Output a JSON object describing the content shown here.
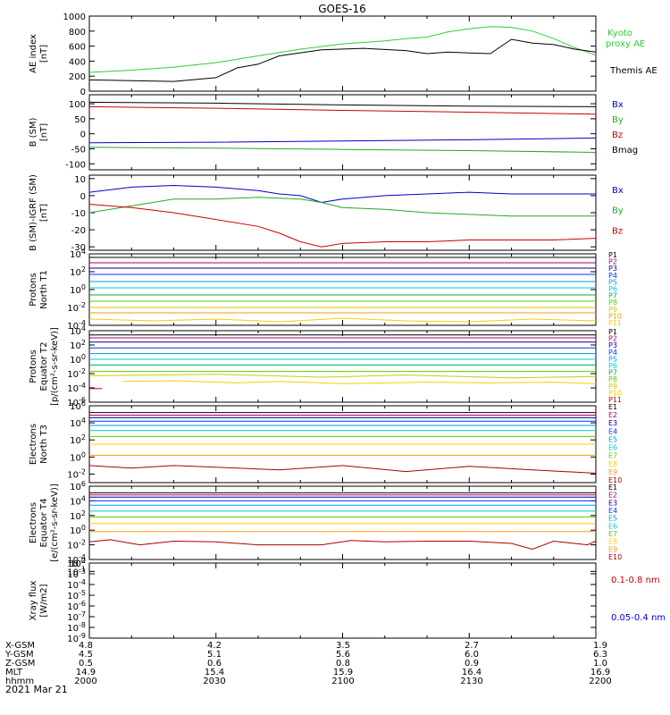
{
  "title": "GOES-16",
  "x_axis": {
    "rows": [
      {
        "label": "X-GSM",
        "values": [
          "4.8",
          "4.2",
          "3.5",
          "2.7",
          "1.9"
        ]
      },
      {
        "label": "Y-GSM",
        "values": [
          "4.5",
          "5.1",
          "5.6",
          "6.0",
          "6.3"
        ]
      },
      {
        "label": "Z-GSM",
        "values": [
          "0.5",
          "0.6",
          "0.8",
          "0.9",
          "1.0"
        ]
      },
      {
        "label": "MLT",
        "values": [
          "14.9",
          "15.4",
          "15.9",
          "16.4",
          "16.9"
        ]
      },
      {
        "label": "hhmm",
        "values": [
          "2000",
          "2030",
          "2100",
          "2130",
          "2200"
        ]
      }
    ],
    "date": "2021 Mar 21",
    "range_minutes": [
      0,
      120
    ]
  },
  "chart_data": [
    {
      "id": "ae",
      "type": "line",
      "ylabel": [
        "AE index",
        "[nT]"
      ],
      "ylim": [
        0,
        1000
      ],
      "yticks": [
        "0",
        "200",
        "400",
        "600",
        "800",
        "1000"
      ],
      "series": [
        {
          "name": "Kyoto proxy AE",
          "color": "#33cc33",
          "x": [
            0,
            10,
            20,
            30,
            40,
            50,
            60,
            70,
            75,
            80,
            85,
            90,
            95,
            100,
            105,
            110,
            115,
            120
          ],
          "y": [
            250,
            280,
            320,
            380,
            470,
            560,
            630,
            670,
            700,
            720,
            790,
            830,
            860,
            850,
            800,
            700,
            580,
            480
          ]
        },
        {
          "name": "Themis AE",
          "color": "#000000",
          "x": [
            0,
            10,
            20,
            30,
            35,
            40,
            45,
            55,
            65,
            75,
            80,
            85,
            90,
            95,
            100,
            105,
            110,
            115,
            120
          ],
          "y": [
            150,
            140,
            130,
            180,
            310,
            360,
            470,
            550,
            570,
            540,
            500,
            520,
            510,
            500,
            690,
            640,
            620,
            560,
            520
          ]
        }
      ]
    },
    {
      "id": "bsm",
      "type": "line",
      "ylabel": [
        "B (SM)",
        "[nT]"
      ],
      "ylim": [
        -120,
        130
      ],
      "yticks": [
        "-100",
        "-50",
        "0",
        "50",
        "100"
      ],
      "series": [
        {
          "name": "Bx",
          "color": "#0000cc",
          "x": [
            0,
            30,
            60,
            90,
            120
          ],
          "y": [
            -30,
            -28,
            -24,
            -20,
            -14
          ]
        },
        {
          "name": "By",
          "color": "#22aa22",
          "x": [
            0,
            30,
            60,
            90,
            120
          ],
          "y": [
            -45,
            -48,
            -52,
            -56,
            -62
          ]
        },
        {
          "name": "Bz",
          "color": "#cc0000",
          "x": [
            0,
            30,
            60,
            90,
            120
          ],
          "y": [
            90,
            85,
            78,
            72,
            65
          ]
        },
        {
          "name": "Bmag",
          "color": "#000000",
          "x": [
            0,
            30,
            60,
            90,
            120
          ],
          "y": [
            105,
            102,
            96,
            92,
            90
          ]
        }
      ]
    },
    {
      "id": "bigrf",
      "type": "line",
      "ylabel": [
        "B (SM)-IGRF (SM)",
        "[nT]"
      ],
      "ylim": [
        -32,
        12
      ],
      "yticks": [
        "-30",
        "-20",
        "-10",
        "0",
        "10"
      ],
      "series": [
        {
          "name": "Bx",
          "color": "#0000cc",
          "x": [
            0,
            10,
            20,
            30,
            40,
            45,
            50,
            55,
            60,
            70,
            80,
            90,
            100,
            110,
            120
          ],
          "y": [
            2,
            5,
            6,
            5,
            3,
            1,
            0,
            -4,
            -2,
            0,
            1,
            2,
            1,
            1,
            1
          ]
        },
        {
          "name": "By",
          "color": "#22aa22",
          "x": [
            0,
            10,
            20,
            30,
            40,
            50,
            55,
            60,
            70,
            80,
            90,
            100,
            110,
            120
          ],
          "y": [
            -10,
            -6,
            -2,
            -2,
            -1,
            -2,
            -4,
            -7,
            -8,
            -10,
            -11,
            -12,
            -12,
            -12
          ]
        },
        {
          "name": "Bz",
          "color": "#cc0000",
          "x": [
            0,
            10,
            20,
            30,
            40,
            45,
            50,
            55,
            60,
            70,
            80,
            90,
            100,
            110,
            120
          ],
          "y": [
            -5,
            -7,
            -10,
            -14,
            -18,
            -22,
            -27,
            -30,
            -28,
            -27,
            -27,
            -26,
            -26,
            -26,
            -25
          ]
        }
      ]
    },
    {
      "id": "protons_north",
      "type": "line",
      "ylabel": [
        "Protons",
        "North T1"
      ],
      "ylim": [
        -4,
        4
      ],
      "log_scale": true,
      "yticks": [
        "10^-4",
        "10^-2",
        "10^0",
        "10^2",
        "10^4"
      ],
      "series": [
        {
          "name": "P1",
          "color": "#000000",
          "x": [
            0,
            120
          ],
          "y": [
            3.6,
            3.6
          ]
        },
        {
          "name": "P2",
          "color": "#aa0066",
          "x": [
            0,
            120
          ],
          "y": [
            3.0,
            3.0
          ]
        },
        {
          "name": "P3",
          "color": "#000099",
          "x": [
            0,
            120
          ],
          "y": [
            2.4,
            2.4
          ]
        },
        {
          "name": "P4",
          "color": "#0033ff",
          "x": [
            0,
            120
          ],
          "y": [
            1.7,
            1.7
          ]
        },
        {
          "name": "P5",
          "color": "#0099dd",
          "x": [
            0,
            120
          ],
          "y": [
            0.9,
            0.9
          ]
        },
        {
          "name": "P6",
          "color": "#00cccc",
          "x": [
            0,
            120
          ],
          "y": [
            0.2,
            0.2
          ]
        },
        {
          "name": "P7",
          "color": "#00aa55",
          "x": [
            0,
            120
          ],
          "y": [
            -0.6,
            -0.6
          ]
        },
        {
          "name": "P8",
          "color": "#55cc00",
          "x": [
            0,
            120
          ],
          "y": [
            -1.3,
            -1.3
          ]
        },
        {
          "name": "P9",
          "color": "#cccc00",
          "x": [
            0,
            120
          ],
          "y": [
            -2.0,
            -2.0
          ]
        },
        {
          "name": "P10",
          "color": "#ff9900",
          "x": [
            0,
            120
          ],
          "y": [
            -2.6,
            -2.6
          ]
        },
        {
          "name": "P11",
          "color": "#ffcc00",
          "x": [
            0,
            15,
            30,
            45,
            60,
            75,
            90,
            105,
            120
          ],
          "y": [
            -3.3,
            -3.5,
            -3.3,
            -3.6,
            -3.2,
            -3.5,
            -3.6,
            -3.3,
            -3.5
          ]
        }
      ]
    },
    {
      "id": "protons_equator",
      "type": "line",
      "ylabel": [
        "Protons",
        "Equator T2",
        "[p/(cm²-s-sr-keV)]"
      ],
      "ylim": [
        -6,
        4
      ],
      "log_scale": true,
      "yticks": [
        "10^-6",
        "10^-4",
        "10^-2",
        "10^0",
        "10^2",
        "10^4"
      ],
      "series": [
        {
          "name": "P1",
          "color": "#000000",
          "x": [
            0,
            120
          ],
          "y": [
            3.4,
            3.4
          ]
        },
        {
          "name": "P2",
          "color": "#aa0066",
          "x": [
            0,
            120
          ],
          "y": [
            3.0,
            3.0
          ]
        },
        {
          "name": "P3",
          "color": "#000099",
          "x": [
            0,
            120
          ],
          "y": [
            2.4,
            2.4
          ]
        },
        {
          "name": "P4",
          "color": "#0033ff",
          "x": [
            0,
            120
          ],
          "y": [
            1.6,
            1.6
          ]
        },
        {
          "name": "P5",
          "color": "#0099dd",
          "x": [
            0,
            120
          ],
          "y": [
            0.8,
            0.8
          ]
        },
        {
          "name": "P6",
          "color": "#00cccc",
          "x": [
            0,
            120
          ],
          "y": [
            0.0,
            0.0
          ]
        },
        {
          "name": "P7",
          "color": "#00aa55",
          "x": [
            0,
            120
          ],
          "y": [
            -0.8,
            -0.8
          ]
        },
        {
          "name": "P8",
          "color": "#55cc00",
          "x": [
            0,
            120
          ],
          "y": [
            -1.7,
            -1.7
          ]
        },
        {
          "name": "P9",
          "color": "#cccc00",
          "x": [
            0,
            30,
            55,
            75,
            100,
            120
          ],
          "y": [
            -2.3,
            -2.1,
            -2.5,
            -2.2,
            -2.6,
            -2.4
          ]
        },
        {
          "name": "P10",
          "color": "#ffcc00",
          "x": [
            8,
            20,
            35,
            45,
            60,
            80,
            95,
            110,
            120
          ],
          "y": [
            -3.1,
            -3.0,
            -3.3,
            -3.1,
            -3.4,
            -3.2,
            -3.3,
            -3.2,
            -3.4
          ]
        },
        {
          "name": "P11",
          "color": "#cc0000",
          "x": [
            0,
            3
          ],
          "y": [
            -4.1,
            -4.1
          ]
        }
      ]
    },
    {
      "id": "electrons_north",
      "type": "line",
      "ylabel": [
        "Electrons",
        "North T3"
      ],
      "ylim": [
        -3,
        6
      ],
      "log_scale": true,
      "yticks": [
        "10^-2",
        "10^0",
        "10^2",
        "10^4",
        "10^6"
      ],
      "series": [
        {
          "name": "E1",
          "color": "#000000",
          "x": [
            0,
            120
          ],
          "y": [
            5.2,
            5.2
          ]
        },
        {
          "name": "E2",
          "color": "#aa0066",
          "x": [
            0,
            120
          ],
          "y": [
            4.9,
            4.9
          ]
        },
        {
          "name": "E3",
          "color": "#000099",
          "x": [
            0,
            120
          ],
          "y": [
            4.6,
            4.6
          ]
        },
        {
          "name": "E4",
          "color": "#0033ff",
          "x": [
            0,
            120
          ],
          "y": [
            4.2,
            4.2
          ]
        },
        {
          "name": "E5",
          "color": "#0099dd",
          "x": [
            0,
            120
          ],
          "y": [
            3.7,
            3.7
          ]
        },
        {
          "name": "E6",
          "color": "#00cccc",
          "x": [
            0,
            120
          ],
          "y": [
            3.1,
            3.1
          ]
        },
        {
          "name": "E7",
          "color": "#55cc00",
          "x": [
            0,
            120
          ],
          "y": [
            2.4,
            2.4
          ]
        },
        {
          "name": "E8",
          "color": "#ffcc00",
          "x": [
            0,
            120
          ],
          "y": [
            1.5,
            1.5
          ]
        },
        {
          "name": "E9",
          "color": "#ff9900",
          "x": [
            0,
            120
          ],
          "y": [
            0.2,
            0.2
          ]
        },
        {
          "name": "E10",
          "color": "#aa0000",
          "x": [
            0,
            10,
            20,
            30,
            45,
            60,
            75,
            90,
            105,
            120
          ],
          "y": [
            -1.0,
            -1.3,
            -1.0,
            -1.2,
            -1.5,
            -1.0,
            -1.7,
            -1.1,
            -1.5,
            -1.9
          ]
        }
      ]
    },
    {
      "id": "electrons_equator",
      "type": "line",
      "ylabel": [
        "Electrons",
        "Equator T4",
        "[e/(cm²-s-sr-keV)]"
      ],
      "ylim": [
        -4,
        6
      ],
      "log_scale": true,
      "yticks": [
        "10^-4",
        "10^-2",
        "10^0",
        "10^2",
        "10^4",
        "10^6"
      ],
      "series": [
        {
          "name": "E1",
          "color": "#000000",
          "x": [
            0,
            120
          ],
          "y": [
            5.1,
            5.1
          ]
        },
        {
          "name": "E2",
          "color": "#aa0066",
          "x": [
            0,
            120
          ],
          "y": [
            4.8,
            4.8
          ]
        },
        {
          "name": "E3",
          "color": "#000099",
          "x": [
            0,
            120
          ],
          "y": [
            4.5,
            4.5
          ]
        },
        {
          "name": "E4",
          "color": "#0033ff",
          "x": [
            0,
            120
          ],
          "y": [
            4.0,
            4.0
          ]
        },
        {
          "name": "E5",
          "color": "#0099dd",
          "x": [
            0,
            120
          ],
          "y": [
            3.4,
            3.4
          ]
        },
        {
          "name": "E6",
          "color": "#00cccc",
          "x": [
            0,
            120
          ],
          "y": [
            2.6,
            2.6
          ]
        },
        {
          "name": "E7",
          "color": "#55cc00",
          "x": [
            0,
            120
          ],
          "y": [
            1.8,
            1.8
          ]
        },
        {
          "name": "E8",
          "color": "#ffcc00",
          "x": [
            0,
            120
          ],
          "y": [
            0.9,
            0.9
          ]
        },
        {
          "name": "E9",
          "color": "#ff9900",
          "x": [
            0,
            120
          ],
          "y": [
            -0.2,
            -0.2
          ]
        },
        {
          "name": "E10",
          "color": "#aa0000",
          "x": [
            0,
            5,
            12,
            20,
            30,
            40,
            55,
            62,
            70,
            80,
            90,
            100,
            105,
            110,
            118,
            120
          ],
          "y": [
            -1.6,
            -1.3,
            -2.0,
            -1.5,
            -1.6,
            -2.0,
            -2.0,
            -1.4,
            -1.6,
            -1.5,
            -1.5,
            -1.8,
            -2.6,
            -1.5,
            -2.0,
            -1.5
          ]
        }
      ]
    },
    {
      "id": "xray",
      "type": "line",
      "ylabel": [
        "Xray flux",
        "[W/m2]"
      ],
      "ylim": [
        -9,
        -2
      ],
      "log_scale": true,
      "yticks": [
        "10^-9",
        "10^-8",
        "10^-7",
        "10^-6",
        "10^-5",
        "10^-4",
        "10^-3",
        "10^-2",
        "10^-1",
        "10^0"
      ],
      "series": [
        {
          "name": "0.1-0.8 nm",
          "color": "#cc0000",
          "x": [],
          "y": []
        },
        {
          "name": "0.05-0.4 nm",
          "color": "#0000cc",
          "x": [],
          "y": []
        }
      ]
    }
  ]
}
